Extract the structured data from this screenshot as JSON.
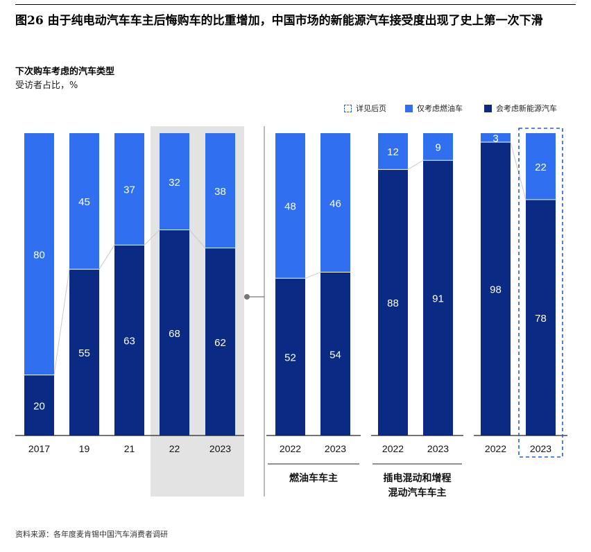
{
  "title": "图26 由于纯电动汽车车主后悔购车的比重增加，中国市场的新能源汽车接受度出现了史上第一次下滑",
  "subtitle": "下次购车考虑的汽车类型",
  "unit": "受访者占比，%",
  "legend": {
    "see_later": "详见后页",
    "ice_only": "仅考虑燃油车",
    "nev": "会考虑新能源汽车"
  },
  "colors": {
    "ice_only": "#2f6ff0",
    "nev": "#0a2a84",
    "highlight_bg": "#e3e3e3",
    "dashed": "#1f5fd6"
  },
  "chart_data": [
    {
      "type": "bar",
      "stacked": true,
      "group_label": "",
      "categories": [
        "2017",
        "19",
        "21",
        "22",
        "2023"
      ],
      "series": [
        {
          "name": "会考虑新能源汽车",
          "values": [
            20,
            55,
            63,
            68,
            62
          ]
        },
        {
          "name": "仅考虑燃油车",
          "values": [
            80,
            45,
            37,
            32,
            38
          ]
        }
      ],
      "highlighted_categories": [
        "22",
        "2023"
      ],
      "ylim": [
        0,
        100
      ]
    },
    {
      "type": "bar",
      "stacked": true,
      "group_label": "燃油车车主",
      "categories": [
        "2022",
        "2023"
      ],
      "series": [
        {
          "name": "会考虑新能源汽车",
          "values": [
            52,
            54
          ]
        },
        {
          "name": "仅考虑燃油车",
          "values": [
            48,
            46
          ]
        }
      ],
      "ylim": [
        0,
        100
      ]
    },
    {
      "type": "bar",
      "stacked": true,
      "group_label": "插电混动和增程\n混动汽车车主",
      "categories": [
        "2022",
        "2023"
      ],
      "series": [
        {
          "name": "会考虑新能源汽车",
          "values": [
            88,
            91
          ]
        },
        {
          "name": "仅考虑燃油车",
          "values": [
            12,
            9
          ]
        }
      ],
      "ylim": [
        0,
        100
      ]
    },
    {
      "type": "bar",
      "stacked": true,
      "group_label": "",
      "categories": [
        "2022",
        "2023"
      ],
      "series": [
        {
          "name": "会考虑新能源汽车",
          "values": [
            98,
            78
          ]
        },
        {
          "name": "仅考虑燃油车",
          "values": [
            3,
            22
          ]
        }
      ],
      "dashed_categories": [
        "2023"
      ],
      "ylim": [
        0,
        100
      ]
    }
  ],
  "source": "资料来源：各年度麦肯锡中国汽车消费者调研"
}
